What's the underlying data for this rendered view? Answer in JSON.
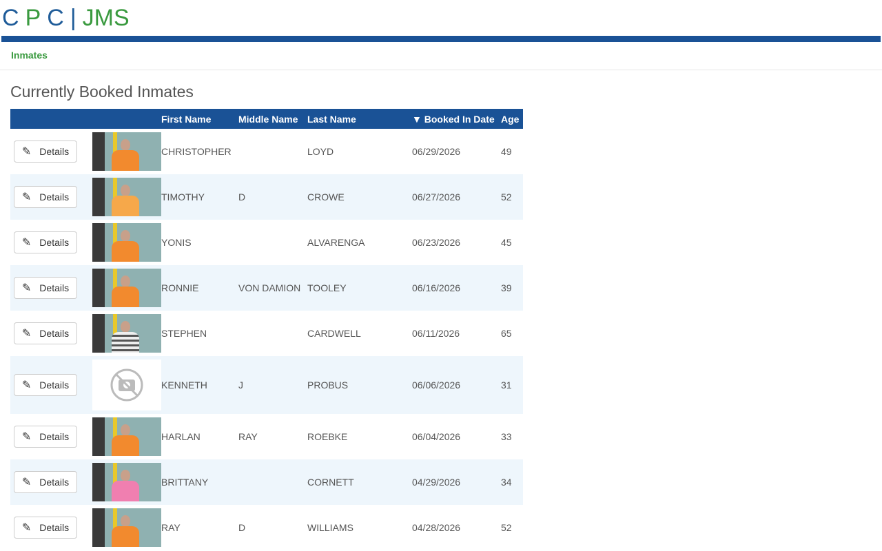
{
  "header": {
    "logo": [
      "C",
      "P",
      "C",
      "|",
      "JMS"
    ]
  },
  "nav": {
    "items": [
      "Inmates"
    ]
  },
  "page": {
    "title": "Currently Booked Inmates"
  },
  "table": {
    "columns": [
      "First Name",
      "Middle Name",
      "Last Name",
      "Booked In Date",
      "Age"
    ],
    "action_label": "Details",
    "rows": [
      [
        "CHRISTOPHER",
        "",
        "LOYD",
        "06/29/2026",
        "49"
      ],
      [
        "TIMOTHY",
        "D",
        "CROWE",
        "06/27/2026",
        "52"
      ],
      [
        "YONIS",
        "",
        "ALVARENGA",
        "06/23/2026",
        "45"
      ],
      [
        "RONNIE",
        "VON DAMION",
        "TOOLEY",
        "06/16/2026",
        "39"
      ],
      [
        "STEPHEN",
        "",
        "CARDWELL",
        "06/11/2026",
        "65"
      ],
      [
        "KENNETH",
        "J",
        "PROBUS",
        "06/06/2026",
        "31"
      ],
      [
        "HARLAN",
        "RAY",
        "ROEBKE",
        "06/04/2026",
        "33"
      ],
      [
        "BRITTANY",
        "",
        "CORNETT",
        "04/29/2026",
        "34"
      ],
      [
        "RAY",
        "D",
        "WILLIAMS",
        "04/28/2026",
        "52"
      ]
    ]
  }
}
